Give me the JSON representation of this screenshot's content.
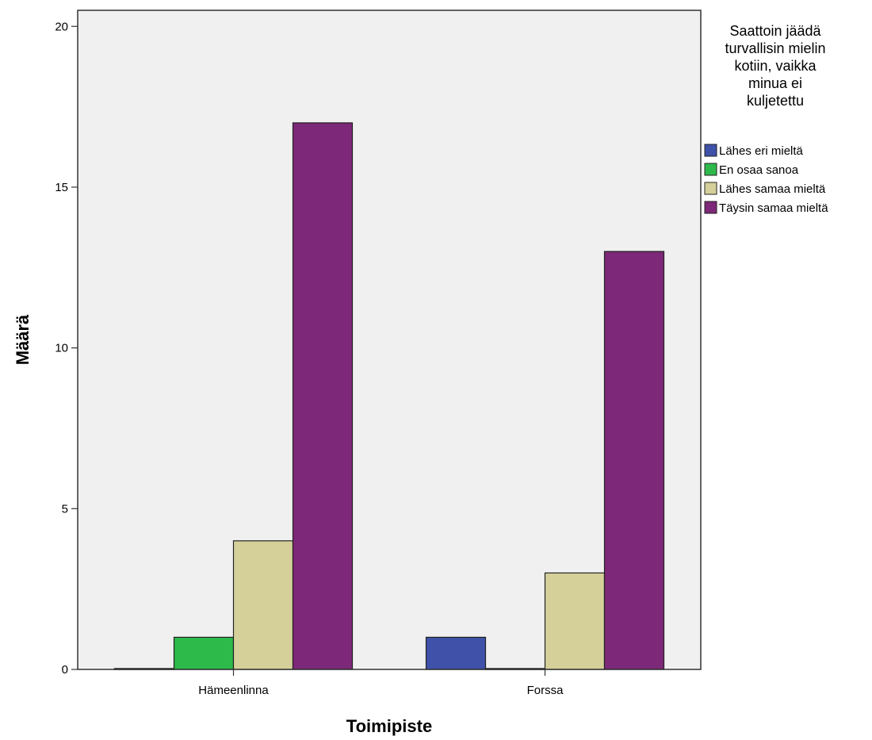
{
  "chart_data": {
    "type": "bar",
    "categories": [
      "Hämeenlinna",
      "Forssa"
    ],
    "series": [
      {
        "name": "Lähes eri mieltä",
        "values": [
          0,
          1
        ],
        "color": "#3f51a8"
      },
      {
        "name": "En osaa sanoa",
        "values": [
          1,
          0
        ],
        "color": "#2dba4b"
      },
      {
        "name": "Lähes samaa mieltä",
        "values": [
          4,
          3
        ],
        "color": "#d5d09a"
      },
      {
        "name": "Täysin samaa mieltä",
        "values": [
          17,
          13
        ],
        "color": "#7d2878"
      }
    ],
    "title": "",
    "xlabel": "Toimipiste",
    "ylabel": "Määrä",
    "ylim": [
      0,
      20.5
    ],
    "yticks": [
      0,
      5,
      10,
      15,
      20
    ],
    "grid": false,
    "plot_background": "#f0f0f0",
    "legend": {
      "title": [
        "Saattoin jäädä",
        "turvallisin mielin",
        "kotiin, vaikka",
        "minua ei",
        "kuljetettu"
      ],
      "position": "right"
    }
  }
}
